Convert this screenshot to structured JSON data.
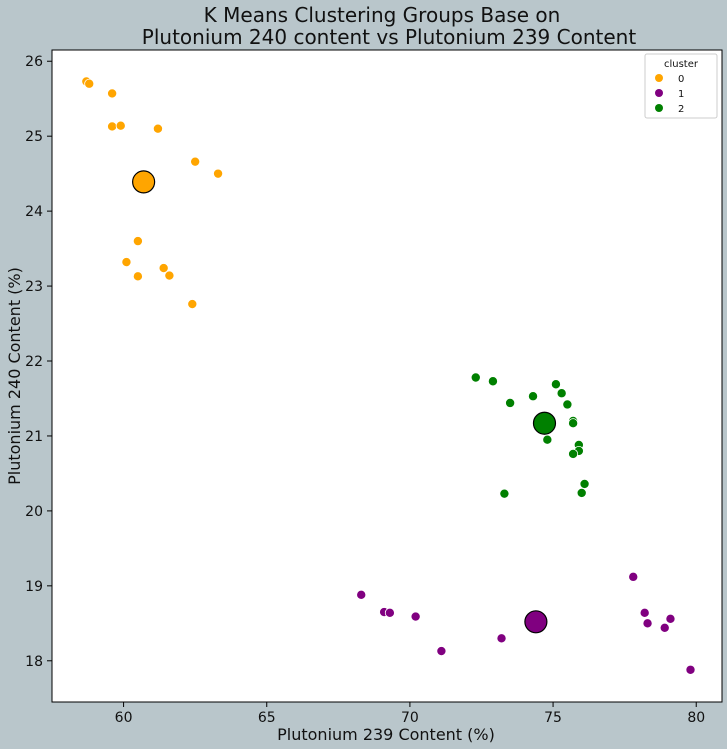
{
  "chart_data": {
    "type": "scatter",
    "title_lines": [
      "K Means Clustering Groups Base on",
      "Plutonium 240 content vs Plutonium 239 Content"
    ],
    "xlabel": "Plutonium 239 Content (%)",
    "ylabel": "Plutonium 240 Content (%)",
    "xlim": [
      57.5,
      80.9
    ],
    "ylim": [
      17.45,
      26.15
    ],
    "xticks": [
      60,
      65,
      70,
      75,
      80
    ],
    "yticks": [
      18,
      19,
      20,
      21,
      22,
      23,
      24,
      25,
      26
    ],
    "grid": false,
    "legend": {
      "title": "cluster",
      "placement": "top-right",
      "entries": [
        {
          "label": "0",
          "color": "#ffa500"
        },
        {
          "label": "1",
          "color": "#800080"
        },
        {
          "label": "2",
          "color": "#008000"
        }
      ]
    },
    "series": [
      {
        "name": "0",
        "color": "#ffa500",
        "points": [
          [
            58.7,
            25.73
          ],
          [
            58.8,
            25.7
          ],
          [
            59.6,
            25.57
          ],
          [
            59.6,
            25.13
          ],
          [
            59.9,
            25.14
          ],
          [
            61.2,
            25.1
          ],
          [
            62.5,
            24.66
          ],
          [
            63.3,
            24.5
          ],
          [
            60.5,
            23.6
          ],
          [
            60.1,
            23.32
          ],
          [
            61.4,
            23.24
          ],
          [
            61.6,
            23.14
          ],
          [
            60.5,
            23.13
          ],
          [
            62.4,
            22.76
          ]
        ],
        "centroid": [
          60.7,
          24.39
        ]
      },
      {
        "name": "1",
        "color": "#800080",
        "points": [
          [
            68.3,
            18.88
          ],
          [
            69.1,
            18.65
          ],
          [
            69.3,
            18.64
          ],
          [
            70.2,
            18.59
          ],
          [
            71.1,
            18.13
          ],
          [
            73.2,
            18.3
          ],
          [
            77.8,
            19.12
          ],
          [
            78.2,
            18.64
          ],
          [
            78.3,
            18.5
          ],
          [
            78.9,
            18.44
          ],
          [
            79.1,
            18.56
          ],
          [
            79.8,
            17.88
          ]
        ],
        "centroid": [
          74.4,
          18.52
        ]
      },
      {
        "name": "2",
        "color": "#008000",
        "points": [
          [
            72.3,
            21.78
          ],
          [
            72.9,
            21.73
          ],
          [
            73.5,
            21.44
          ],
          [
            74.3,
            21.53
          ],
          [
            75.1,
            21.69
          ],
          [
            75.3,
            21.57
          ],
          [
            75.5,
            21.42
          ],
          [
            75.7,
            21.2
          ],
          [
            75.7,
            21.17
          ],
          [
            74.8,
            20.95
          ],
          [
            75.9,
            20.88
          ],
          [
            75.9,
            20.8
          ],
          [
            75.7,
            20.76
          ],
          [
            76.1,
            20.36
          ],
          [
            76.0,
            20.24
          ],
          [
            73.3,
            20.23
          ]
        ],
        "centroid": [
          74.7,
          21.17
        ]
      }
    ]
  }
}
